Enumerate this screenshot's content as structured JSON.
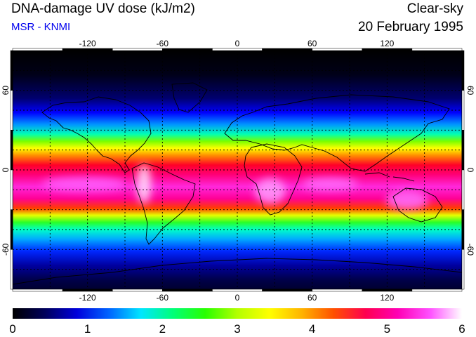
{
  "header": {
    "title": "DNA-damage UV dose (kJ/m2)",
    "subtitle": "MSR - KNMI",
    "sky_type": "Clear-sky",
    "date": "20 February 1995"
  },
  "map": {
    "projection": "equirectangular",
    "lon_range": [
      -180,
      180
    ],
    "lat_range": [
      -90,
      90
    ],
    "lon_ticks": [
      -120,
      -60,
      0,
      60,
      120
    ],
    "lat_ticks": [
      60,
      0,
      -60
    ],
    "grid_lon_step": 30,
    "grid_lat_step": 15,
    "grid_style": "dotted",
    "land_outlines": true
  },
  "colorbar": {
    "min": 0,
    "max": 6,
    "tick_labels": [
      "0",
      "1",
      "2",
      "3",
      "4",
      "5",
      "6"
    ],
    "colors": [
      "#000000",
      "#00005a",
      "#0000dc",
      "#0064ff",
      "#00e6ff",
      "#00ff78",
      "#28ff00",
      "#b4ff00",
      "#ffff00",
      "#ffb400",
      "#ff5000",
      "#ff0050",
      "#ff00b4",
      "#ff50ff",
      "#ffffff"
    ]
  }
}
